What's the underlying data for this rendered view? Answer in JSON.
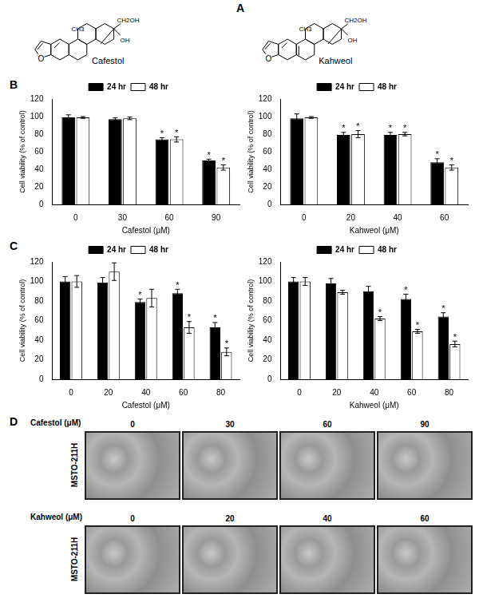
{
  "panel_labels": [
    "A",
    "B",
    "C",
    "D"
  ],
  "structures": [
    {
      "name": "Cafestol",
      "groups": [
        "O",
        "CH3",
        "CH2OH",
        "OH"
      ]
    },
    {
      "name": "Kahweol",
      "groups": [
        "O",
        "CH3",
        "CH2OH",
        "OH"
      ]
    }
  ],
  "chart_data": [
    {
      "type": "bar",
      "xlabel": "Cafestol (μM)",
      "ylabel": "Cell viability (% of control)",
      "categories": [
        "0",
        "30",
        "60",
        "90"
      ],
      "ylim": [
        0,
        120
      ],
      "yticks": [
        0,
        20,
        40,
        60,
        80,
        100,
        120
      ],
      "grid": false,
      "legend": "top",
      "series": [
        {
          "name": "24 hr",
          "color": "#000000",
          "values": [
            99,
            97,
            74,
            50
          ],
          "errors": [
            3,
            1.5,
            2,
            1.5
          ],
          "marks": [
            null,
            null,
            "*",
            "*"
          ]
        },
        {
          "name": "48 hr",
          "color": "#ffffff",
          "values": [
            99,
            98,
            74,
            42
          ],
          "errors": [
            1,
            1.5,
            3,
            3
          ],
          "marks": [
            null,
            null,
            "*",
            "*"
          ]
        }
      ]
    },
    {
      "type": "bar",
      "xlabel": "Kahweol (μM)",
      "ylabel": "Cell viability (% of control)",
      "categories": [
        "0",
        "20",
        "40",
        "60"
      ],
      "ylim": [
        0,
        120
      ],
      "yticks": [
        0,
        20,
        40,
        60,
        80,
        100,
        120
      ],
      "grid": false,
      "legend": "top",
      "series": [
        {
          "name": "24 hr",
          "color": "#000000",
          "values": [
            98,
            79,
            79,
            48
          ],
          "errors": [
            5,
            3,
            3,
            4
          ],
          "marks": [
            null,
            "*",
            "*",
            "*"
          ]
        },
        {
          "name": "48 hr",
          "color": "#ffffff",
          "values": [
            99,
            80,
            80,
            42
          ],
          "errors": [
            1,
            4,
            2,
            3
          ],
          "marks": [
            null,
            "*",
            "*",
            "*"
          ]
        }
      ]
    },
    {
      "type": "bar",
      "xlabel": "Cafestol (μM)",
      "ylabel": "Cell viability (% of control)",
      "categories": [
        "0",
        "20",
        "40",
        "60",
        "80"
      ],
      "ylim": [
        0,
        120
      ],
      "yticks": [
        0,
        20,
        40,
        60,
        80,
        100,
        120
      ],
      "grid": false,
      "legend": "top",
      "series": [
        {
          "name": "24 hr",
          "color": "#000000",
          "values": [
            100,
            99,
            79,
            88,
            53
          ],
          "errors": [
            5,
            5,
            3,
            4,
            5
          ],
          "marks": [
            null,
            null,
            "*",
            "*",
            "*"
          ]
        },
        {
          "name": "48 hr",
          "color": "#ffffff",
          "values": [
            100,
            110,
            83,
            53,
            28
          ],
          "errors": [
            6,
            9,
            9,
            6,
            4
          ],
          "marks": [
            null,
            null,
            null,
            "*",
            "*"
          ]
        }
      ]
    },
    {
      "type": "bar",
      "xlabel": "Kahweol (μM)",
      "ylabel": "Cell viability (% of control)",
      "categories": [
        "0",
        "20",
        "40",
        "60",
        "80"
      ],
      "ylim": [
        0,
        120
      ],
      "yticks": [
        0,
        20,
        40,
        60,
        80,
        100,
        120
      ],
      "grid": false,
      "legend": "top",
      "series": [
        {
          "name": "24 hr",
          "color": "#000000",
          "values": [
            100,
            98,
            90,
            82,
            64
          ],
          "errors": [
            4,
            5,
            5,
            5,
            4
          ],
          "marks": [
            null,
            null,
            null,
            "*",
            "*"
          ]
        },
        {
          "name": "48 hr",
          "color": "#ffffff",
          "values": [
            100,
            89,
            62,
            49,
            36
          ],
          "errors": [
            4,
            2,
            2,
            2,
            3
          ],
          "marks": [
            null,
            null,
            "*",
            "*",
            "*"
          ]
        }
      ]
    }
  ],
  "micrographs": {
    "cell_line": "MSTO-211H",
    "rows": [
      {
        "treatment": "Cafestol (μM)",
        "doses": [
          "0",
          "30",
          "60",
          "90"
        ]
      },
      {
        "treatment": "Kahweol (μM)",
        "doses": [
          "0",
          "20",
          "40",
          "60"
        ]
      }
    ]
  }
}
